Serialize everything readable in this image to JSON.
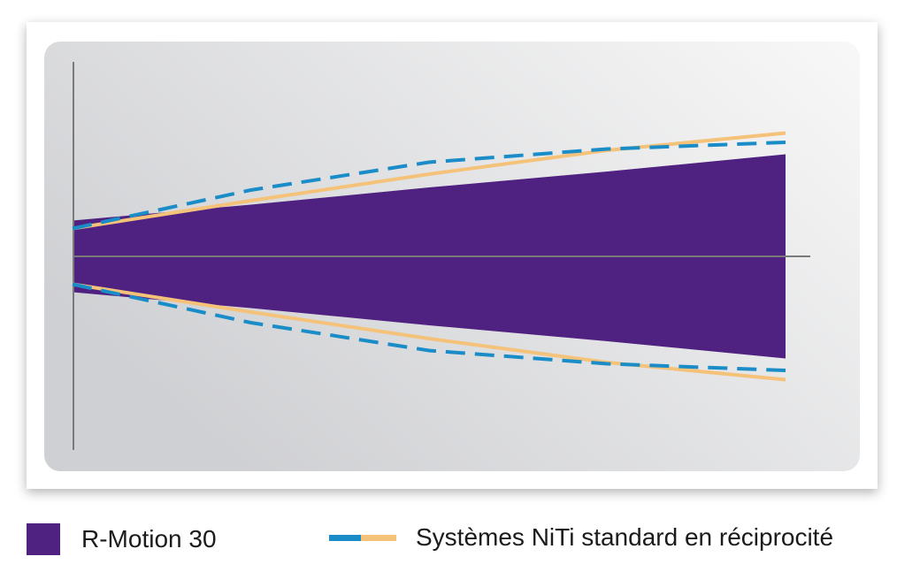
{
  "chart_data": {
    "type": "area",
    "title": "",
    "xlabel": "",
    "ylabel": "",
    "grid": false,
    "legend_position": "bottom",
    "x": [
      0,
      0.25,
      0.5,
      0.75,
      1.0
    ],
    "series": [
      {
        "name": "R-Motion 30",
        "kind": "band",
        "upper": [
          0.27,
          0.39,
          0.52,
          0.64,
          0.77
        ],
        "lower": [
          -0.27,
          -0.39,
          -0.52,
          -0.64,
          -0.77
        ],
        "color": "#4f2180"
      },
      {
        "name": "Systèmes NiTi standard en réciprocité",
        "kind": "envelope",
        "upper": [
          0.21,
          0.42,
          0.62,
          0.8,
          0.93
        ],
        "lower": [
          -0.21,
          -0.42,
          -0.62,
          -0.8,
          -0.93
        ],
        "solid_color": "#f5c27a",
        "dashed_upper": [
          0.21,
          0.5,
          0.71,
          0.81,
          0.86
        ],
        "dashed_lower": [
          -0.21,
          -0.5,
          -0.71,
          -0.81,
          -0.86
        ],
        "dashed_color": "#1a8cc7"
      }
    ],
    "axis_color": "#7a7a7a",
    "panel_gradient": [
      "#cfd0d3",
      "#f8f8f8"
    ]
  },
  "legend": {
    "item1_label": "R-Motion 30",
    "item1_color": "#4f2180",
    "item2_label": "Systèmes NiTi standard en réciprocité",
    "item2_colors": [
      "#1a8cc7",
      "#f5c27a"
    ]
  }
}
